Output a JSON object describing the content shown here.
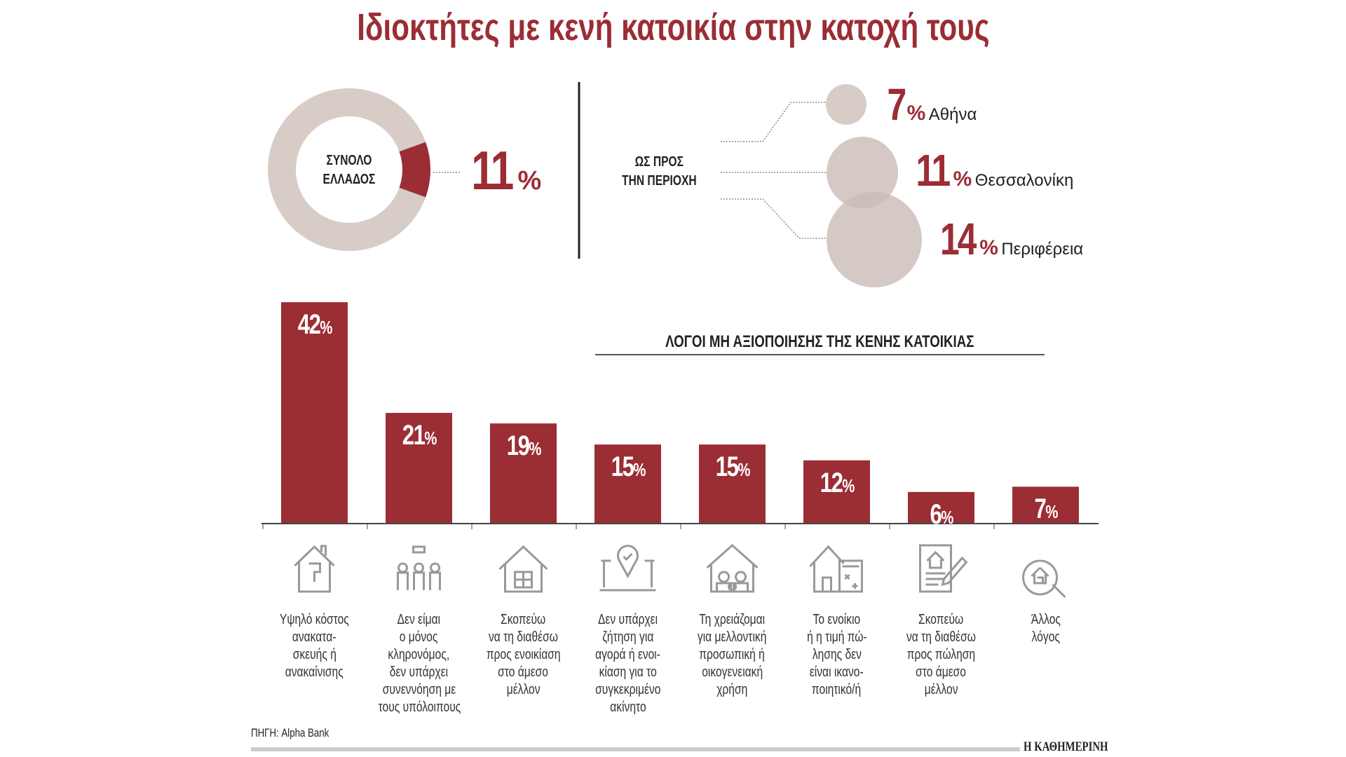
{
  "title": "Ιδιοκτήτες με κενή κατοικία στην κατοχή τους",
  "total": {
    "label_line1": "ΣΥΝΟΛΟ",
    "label_line2": "ΕΛΛΑΔΟΣ",
    "value": "11",
    "unit": "%"
  },
  "region": {
    "label_line1": "ΩΣ ΠΡΟΣ",
    "label_line2": "ΤΗΝ ΠΕΡΙΟΧΗ",
    "items": [
      {
        "value": "7",
        "unit": "%",
        "name": "Αθήνα"
      },
      {
        "value": "11",
        "unit": "%",
        "name": "Θεσσαλονίκη"
      },
      {
        "value": "14",
        "unit": "%",
        "name": "Περιφέρεια"
      }
    ]
  },
  "colors": {
    "accent": "#9b2d35",
    "neutral": "#d8ccc7"
  },
  "chart_data": {
    "type": "bar",
    "title": "ΛΟΓΟΙ ΜΗ ΑΞΙΟΠΟΙΗΣΗΣ ΤΗΣ ΚΕΝΗΣ ΚΑΤΟΙΚΙΑΣ",
    "unit": "%",
    "values": [
      42,
      21,
      19,
      15,
      15,
      12,
      6,
      7
    ],
    "categories": [
      [
        "Υψηλό κόστος",
        "ανακατα-",
        "σκευής ή",
        "ανακαίνισης"
      ],
      [
        "Δεν είμαι",
        "ο μόνος",
        "κληρονόμος,",
        "δεν υπάρχει",
        "συνεννόηση με",
        "τους υπόλοιπους"
      ],
      [
        "Σκοπεύω",
        "να τη διαθέσω",
        "προς ενοικίαση",
        "στο άμεσο",
        "μέλλον"
      ],
      [
        "Δεν υπάρχει",
        "ζήτηση για",
        "αγορά ή ενοι-",
        "κίαση για το",
        "συγκεκριμένο",
        "ακίνητο"
      ],
      [
        "Τη χρειάζομαι",
        "για μελλοντική",
        "προσωπική ή",
        "οικογενειακή",
        "χρήση"
      ],
      [
        "Το ενοίκιο",
        "ή η τιμή πώ-",
        "λησης δεν",
        "είναι ικανο-",
        "ποιητικό/ή"
      ],
      [
        "Σκοπεύω",
        "να τη διαθέσω",
        "προς πώληση",
        "στο άμεσο",
        "μέλλον"
      ],
      [
        "Άλλος",
        "λόγος"
      ]
    ],
    "icons": [
      "house-paint-icon",
      "family-group-icon",
      "house-window-icon",
      "location-pin-icon",
      "family-house-icon",
      "house-calculator-icon",
      "document-house-pen-icon",
      "house-search-icon"
    ],
    "ylim": [
      0,
      42
    ]
  },
  "footer": {
    "source": "ΠΗΓΗ: Alpha Bank",
    "brand": "Η ΚΑΘΗΜΕΡΙΝΗ"
  }
}
